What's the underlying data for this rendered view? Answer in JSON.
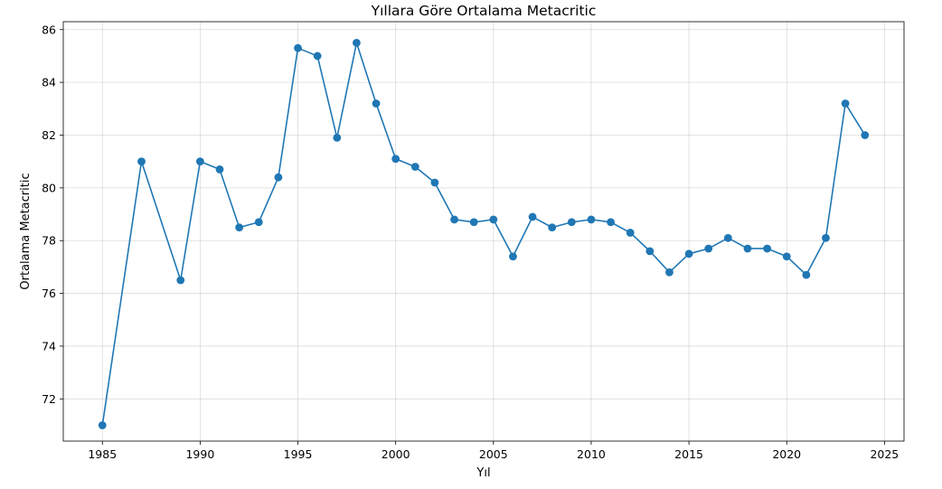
{
  "chart_data": {
    "type": "line",
    "title": "Yıllara Göre Ortalama Metacritic",
    "xlabel": "Yıl",
    "ylabel": "Ortalama Metacritic",
    "xlim": [
      1983,
      2026
    ],
    "ylim": [
      70.4,
      86.3
    ],
    "xticks": [
      1985,
      1990,
      1995,
      2000,
      2005,
      2010,
      2015,
      2020,
      2025
    ],
    "yticks": [
      72,
      74,
      76,
      78,
      80,
      82,
      84,
      86
    ],
    "grid": true,
    "color": "#1f77b4",
    "marker": "circle",
    "x": [
      1985,
      1987,
      1989,
      1990,
      1991,
      1992,
      1993,
      1994,
      1995,
      1996,
      1997,
      1998,
      1999,
      2000,
      2001,
      2002,
      2003,
      2004,
      2005,
      2006,
      2007,
      2008,
      2009,
      2010,
      2011,
      2012,
      2013,
      2014,
      2015,
      2016,
      2017,
      2018,
      2019,
      2020,
      2021,
      2022,
      2023,
      2024
    ],
    "y": [
      71.0,
      81.0,
      76.5,
      81.0,
      80.7,
      78.5,
      78.7,
      80.4,
      85.3,
      85.0,
      81.9,
      85.5,
      83.2,
      81.1,
      80.8,
      80.2,
      78.8,
      78.7,
      78.8,
      77.4,
      78.9,
      78.5,
      78.7,
      78.8,
      78.7,
      78.3,
      77.6,
      76.8,
      77.5,
      77.7,
      78.1,
      77.7,
      77.7,
      77.4,
      76.7,
      78.1,
      83.2,
      82.0
    ]
  }
}
